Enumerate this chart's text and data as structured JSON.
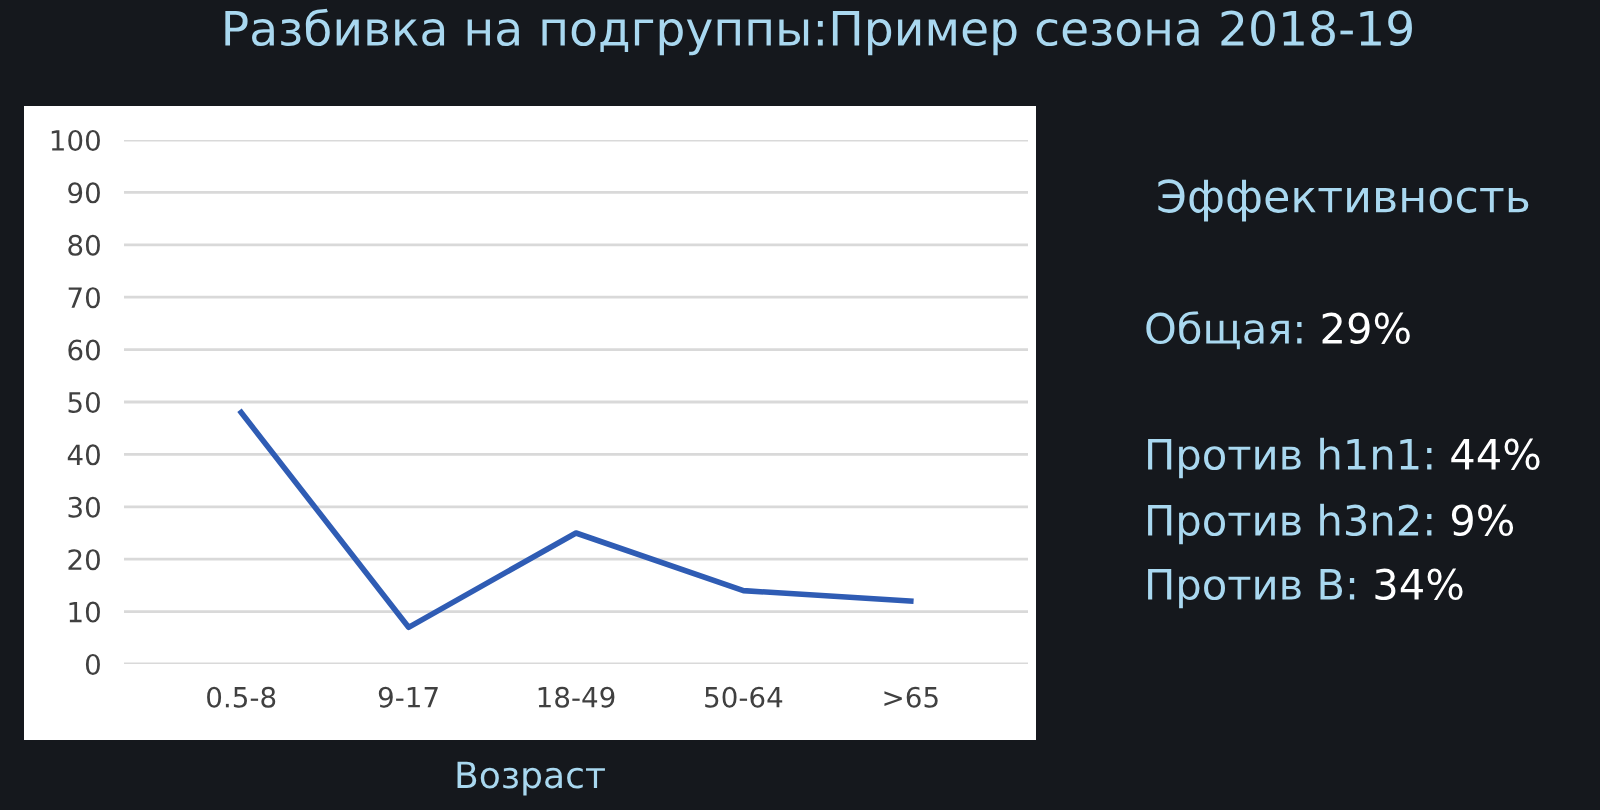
{
  "chart_data": {
    "type": "line",
    "title": "Разбивка на подгруппы:Пример сезона 2018-19",
    "xlabel": "Возраст",
    "categories": [
      "0.5-8",
      "9-17",
      "18-49",
      "50-64",
      ">65"
    ],
    "series": [
      {
        "color": "#2f5cb4",
        "values": [
          48,
          7,
          25,
          14,
          12
        ]
      }
    ],
    "ylim": [
      0,
      100
    ],
    "yticks": [
      0,
      10,
      20,
      30,
      40,
      50,
      60,
      70,
      80,
      90,
      100
    ],
    "grid": "y",
    "marker": "none",
    "line_style": "solid",
    "annotations": [
      "Эффективность",
      "Общая: 29%",
      "Против h1n1: 44%",
      "Против h3n2: 9%",
      "Против B: 34%"
    ]
  }
}
